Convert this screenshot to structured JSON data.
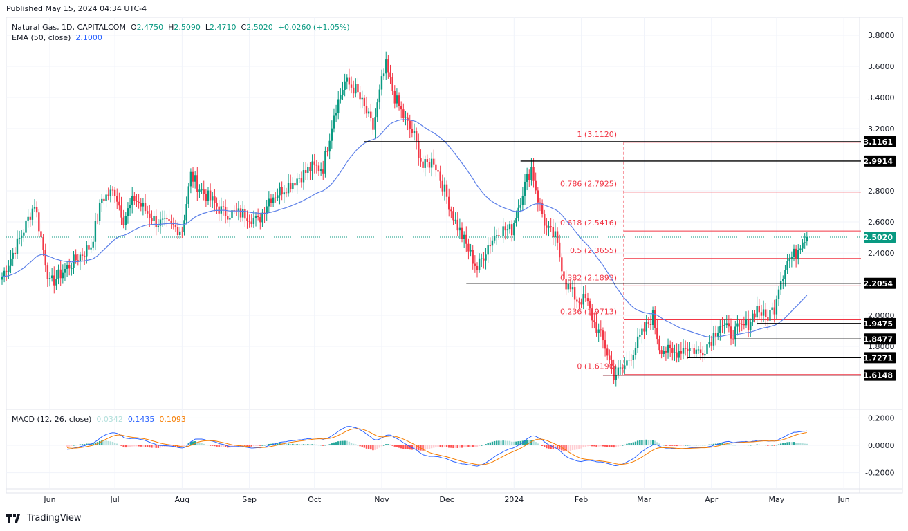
{
  "published": "Published May 15, 2024 04:34 UTC-4",
  "legend": {
    "symbol": "Natural Gas, 1D, CAPITALCOM",
    "o_label": "O",
    "o": "2.4750",
    "h_label": "H",
    "h": "2.5090",
    "l_label": "L",
    "l": "2.4710",
    "c_label": "C",
    "c": "2.5020",
    "change": "+0.0260 (+1.05%)",
    "ema_label": "EMA (50, close)",
    "ema_value": "2.1000"
  },
  "macd_legend": {
    "label": "MACD (12, 26, close)",
    "hist": "0.0342",
    "macd": "0.1435",
    "signal": "0.1093"
  },
  "brand": "TradingView",
  "colors": {
    "up": "#089981",
    "down": "#f23645",
    "ema": "#5b7fe8",
    "macd": "#2962ff",
    "signal": "#f57c00",
    "fib": "#f23645",
    "level": "#000000",
    "last": "#089981"
  },
  "chart_data": {
    "type": "candlestick",
    "title": "Natural Gas, 1D, CAPITALCOM",
    "ylim": [
      1.55,
      3.85
    ],
    "y_ticks": [
      "3.8000",
      "3.6000",
      "3.4000",
      "3.2000",
      "2.8000",
      "2.6000",
      "2.4000",
      "2.0000",
      "1.8000"
    ],
    "y_tick_values": [
      3.8,
      3.6,
      3.4,
      3.2,
      2.8,
      2.6,
      2.4,
      2.0,
      1.8
    ],
    "x_ticks": [
      "Jun",
      "Jul",
      "Aug",
      "Sep",
      "Oct",
      "Nov",
      "Dec",
      "2024",
      "Feb",
      "Mar",
      "Apr",
      "May",
      "Jun"
    ],
    "x_tick_dates": [
      "2023-06-01",
      "2023-07-01",
      "2023-08-01",
      "2023-09-01",
      "2023-10-01",
      "2023-11-01",
      "2023-12-01",
      "2024-01-01",
      "2024-02-01",
      "2024-03-01",
      "2024-04-01",
      "2024-05-01",
      "2024-06-01"
    ],
    "close_keypoints": [
      [
        "2023-05-10",
        2.25
      ],
      [
        "2023-05-20",
        2.55
      ],
      [
        "2023-05-25",
        2.72
      ],
      [
        "2023-06-01",
        2.2
      ],
      [
        "2023-06-10",
        2.32
      ],
      [
        "2023-06-20",
        2.45
      ],
      [
        "2023-06-25",
        2.75
      ],
      [
        "2023-07-01",
        2.8
      ],
      [
        "2023-07-05",
        2.62
      ],
      [
        "2023-07-10",
        2.75
      ],
      [
        "2023-07-20",
        2.6
      ],
      [
        "2023-08-01",
        2.55
      ],
      [
        "2023-08-05",
        2.9
      ],
      [
        "2023-08-10",
        2.8
      ],
      [
        "2023-08-20",
        2.66
      ],
      [
        "2023-08-31",
        2.65
      ],
      [
        "2023-09-05",
        2.6
      ],
      [
        "2023-09-10",
        2.75
      ],
      [
        "2023-09-20",
        2.85
      ],
      [
        "2023-09-30",
        2.95
      ],
      [
        "2023-10-05",
        2.95
      ],
      [
        "2023-10-10",
        3.3
      ],
      [
        "2023-10-15",
        3.5
      ],
      [
        "2023-10-20",
        3.45
      ],
      [
        "2023-10-25",
        3.3
      ],
      [
        "2023-10-28",
        3.2
      ],
      [
        "2023-11-01",
        3.5
      ],
      [
        "2023-11-03",
        3.6
      ],
      [
        "2023-11-07",
        3.4
      ],
      [
        "2023-11-12",
        3.25
      ],
      [
        "2023-11-16",
        3.15
      ],
      [
        "2023-11-20",
        2.95
      ],
      [
        "2023-11-25",
        3.0
      ],
      [
        "2023-11-30",
        2.8
      ],
      [
        "2023-12-05",
        2.6
      ],
      [
        "2023-12-10",
        2.45
      ],
      [
        "2023-12-15",
        2.3
      ],
      [
        "2023-12-20",
        2.45
      ],
      [
        "2023-12-25",
        2.55
      ],
      [
        "2023-12-31",
        2.55
      ],
      [
        "2024-01-05",
        2.8
      ],
      [
        "2024-01-09",
        2.95
      ],
      [
        "2024-01-12",
        2.75
      ],
      [
        "2024-01-16",
        2.55
      ],
      [
        "2024-01-20",
        2.5
      ],
      [
        "2024-01-25",
        2.2
      ],
      [
        "2024-01-30",
        2.1
      ],
      [
        "2024-02-03",
        2.1
      ],
      [
        "2024-02-07",
        1.95
      ],
      [
        "2024-02-12",
        1.8
      ],
      [
        "2024-02-16",
        1.62
      ],
      [
        "2024-02-20",
        1.65
      ],
      [
        "2024-02-24",
        1.75
      ],
      [
        "2024-03-01",
        1.9
      ],
      [
        "2024-03-05",
        2.0
      ],
      [
        "2024-03-08",
        1.8
      ],
      [
        "2024-03-14",
        1.75
      ],
      [
        "2024-03-20",
        1.8
      ],
      [
        "2024-03-27",
        1.76
      ],
      [
        "2024-04-01",
        1.85
      ],
      [
        "2024-04-05",
        1.95
      ],
      [
        "2024-04-10",
        1.88
      ],
      [
        "2024-04-15",
        1.92
      ],
      [
        "2024-04-18",
        1.95
      ],
      [
        "2024-04-22",
        2.05
      ],
      [
        "2024-04-26",
        1.98
      ],
      [
        "2024-04-30",
        2.05
      ],
      [
        "2024-05-02",
        2.2
      ],
      [
        "2024-05-06",
        2.35
      ],
      [
        "2024-05-10",
        2.4
      ],
      [
        "2024-05-13",
        2.5
      ],
      [
        "2024-05-15",
        2.502
      ]
    ],
    "ema_period": 50,
    "fib_levels": [
      {
        "label": "1 (3.1120)",
        "value": 3.112
      },
      {
        "label": "0.786 (2.7925)",
        "value": 2.7925
      },
      {
        "label": "0.618 (2.5416)",
        "value": 2.5416
      },
      {
        "label": "0.5 (2.3655)",
        "value": 2.3655
      },
      {
        "label": "0.382 (2.1893)",
        "value": 2.1893
      },
      {
        "label": "0.236 (1.9713)",
        "value": 1.9713
      },
      {
        "label": "0 (1.6190)",
        "value": 1.619
      }
    ],
    "levels": [
      {
        "label": "3.1161",
        "value": 3.1161,
        "start": "2023-10-24"
      },
      {
        "label": "2.9914",
        "value": 2.9914,
        "start": "2024-01-04"
      },
      {
        "label": "2.2054",
        "value": 2.2054,
        "start": "2023-12-10"
      },
      {
        "label": "1.9475",
        "value": 1.9475,
        "start": "2024-04-22"
      },
      {
        "label": "1.8477",
        "value": 1.8477,
        "start": "2024-04-12"
      },
      {
        "label": "1.7271",
        "value": 1.7271,
        "start": "2024-03-21"
      },
      {
        "label": "1.6148",
        "value": 1.6148,
        "start": "2024-02-11"
      }
    ],
    "last_price": {
      "label": "2.5020",
      "value": 2.502
    },
    "macd": {
      "ylim": [
        -0.25,
        0.25
      ],
      "y_ticks": [
        "0.2000",
        "0.0000",
        "-0.2000"
      ],
      "y_tick_values": [
        0.2,
        0,
        -0.2
      ]
    }
  }
}
